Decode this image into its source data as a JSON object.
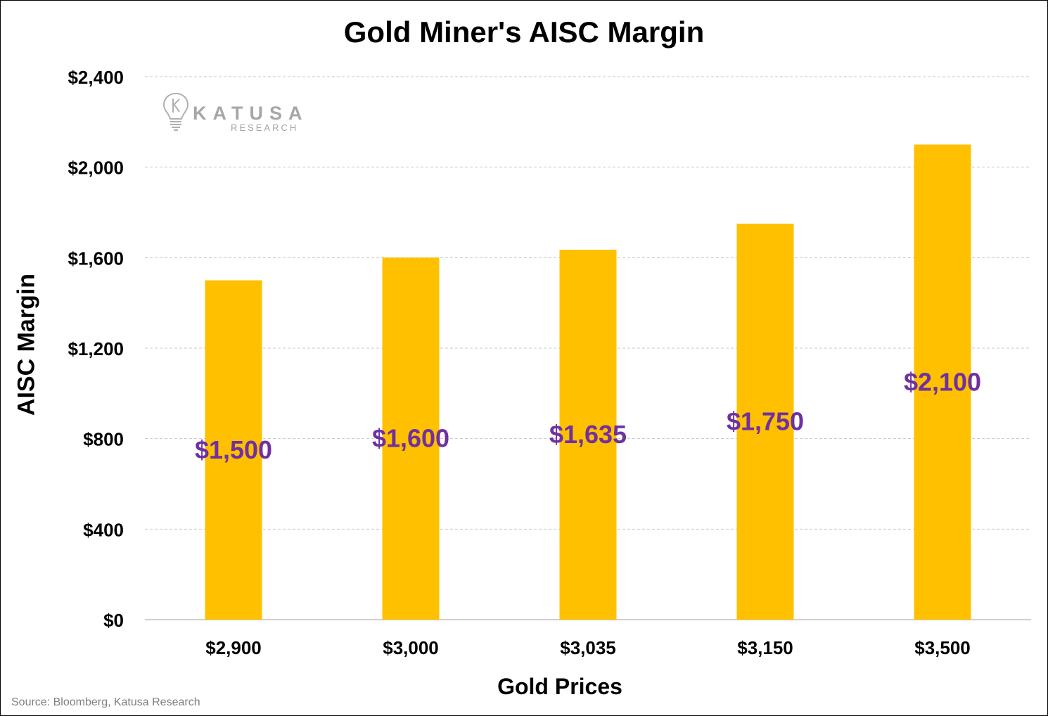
{
  "chart_data": {
    "type": "bar",
    "title": "Gold Miner's AISC Margin",
    "xlabel": "Gold Prices",
    "ylabel": "AISC Margin",
    "categories": [
      "$2,900",
      "$3,000",
      "$3,035",
      "$3,150",
      "$3,500"
    ],
    "values": [
      1500,
      1600,
      1635,
      1750,
      2100
    ],
    "data_labels": [
      "$1,500",
      "$1,600",
      "$1,635",
      "$1,750",
      "$2,100"
    ],
    "ylim": [
      0,
      2400
    ],
    "yticks": [
      0,
      400,
      800,
      1200,
      1600,
      2000,
      2400
    ],
    "ytick_labels": [
      "$0",
      "$400",
      "$800",
      "$1,200",
      "$1,600",
      "$2,000",
      "$2,400"
    ],
    "grid": true,
    "legend": "none",
    "bar_color": "#FFC000",
    "label_color": "#7030A0"
  },
  "logo": {
    "name": "KATUSA",
    "sub": "RESEARCH"
  },
  "source": "Source: Bloomberg, Katusa Research"
}
